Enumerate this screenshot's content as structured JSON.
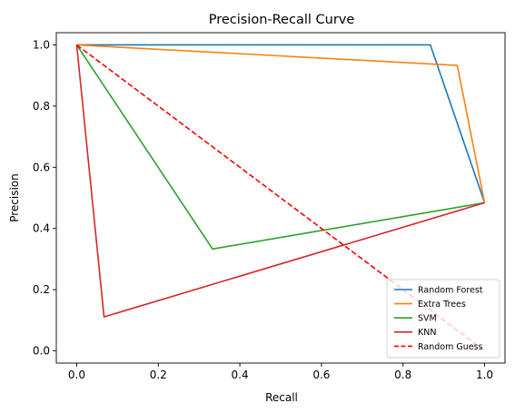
{
  "chart_data": {
    "type": "line",
    "title": "Precision-Recall Curve",
    "xlabel": "Recall",
    "ylabel": "Precision",
    "xlim": [
      -0.05,
      1.05
    ],
    "ylim": [
      -0.04,
      1.04
    ],
    "xticks": [
      0.0,
      0.2,
      0.4,
      0.6,
      0.8,
      1.0
    ],
    "yticks": [
      0.0,
      0.2,
      0.4,
      0.6,
      0.8,
      1.0
    ],
    "xtick_labels": [
      "0.0",
      "0.2",
      "0.4",
      "0.6",
      "0.8",
      "1.0"
    ],
    "ytick_labels": [
      "0.0",
      "0.2",
      "0.4",
      "0.6",
      "0.8",
      "1.0"
    ],
    "grid": false,
    "legend_position": "lower-right",
    "series": [
      {
        "name": "Random Forest",
        "color": "#1f77b4",
        "dash": "solid",
        "x": [
          0.0,
          0.867,
          1.0
        ],
        "y": [
          1.0,
          1.0,
          0.484
        ]
      },
      {
        "name": "Extra Trees",
        "color": "#ff7f0e",
        "dash": "solid",
        "x": [
          0.0,
          0.933,
          1.0
        ],
        "y": [
          1.0,
          0.933,
          0.484
        ]
      },
      {
        "name": "SVM",
        "color": "#2ca02c",
        "dash": "solid",
        "x": [
          0.0,
          0.333,
          1.0
        ],
        "y": [
          1.0,
          0.333,
          0.484
        ]
      },
      {
        "name": "KNN",
        "color": "#d62728",
        "dash": "solid",
        "x": [
          0.0,
          0.067,
          1.0
        ],
        "y": [
          1.0,
          0.111,
          0.484
        ]
      },
      {
        "name": "Random Guess",
        "color": "#ff0000",
        "dash": "dashed",
        "x": [
          0.0,
          1.0
        ],
        "y": [
          1.0,
          0.0
        ]
      }
    ]
  }
}
